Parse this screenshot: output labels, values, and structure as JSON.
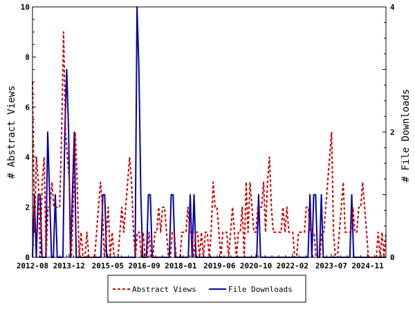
{
  "chart_data": {
    "type": "line",
    "x_start": "2012-08",
    "x_end": "2025-07",
    "x_ticks": [
      "2012-08",
      "2013-12",
      "2015-05",
      "2016-09",
      "2018-01",
      "2019-06",
      "2020-10",
      "2022-02",
      "2023-07",
      "2024-11"
    ],
    "ylabel": "# Abstract Views",
    "ylim": [
      0,
      10
    ],
    "yticks": [
      0,
      2,
      4,
      6,
      8,
      10
    ],
    "y2label": "# File Downloads",
    "y2lim": [
      0,
      4
    ],
    "y2ticks": [
      0,
      2,
      4
    ],
    "grid": false,
    "legend_position": "bottom-center",
    "series": [
      {
        "name": "Abstract Views",
        "axis": "left",
        "color": "#cc0000",
        "style": "dashed",
        "values": [
          7,
          1,
          4,
          3,
          0,
          3,
          4,
          0,
          2,
          2,
          3,
          2,
          2,
          2,
          2,
          5,
          9,
          5,
          4,
          3,
          0,
          2,
          5,
          3,
          0,
          1,
          0,
          0,
          1,
          0,
          0,
          0,
          0,
          1,
          2,
          3,
          2,
          0,
          1,
          2,
          0,
          1,
          0,
          0,
          0,
          1,
          2,
          1,
          2,
          3,
          4,
          3,
          1,
          0,
          1,
          1,
          0,
          1,
          0,
          0,
          1,
          0,
          0,
          1,
          1,
          2,
          1,
          2,
          2,
          1,
          0,
          0,
          1,
          1,
          0,
          0,
          0,
          1,
          1,
          1,
          2,
          1,
          1,
          0,
          1,
          1,
          0,
          1,
          0,
          1,
          1,
          0,
          1,
          3,
          2,
          2,
          1,
          0,
          1,
          1,
          1,
          0,
          1,
          2,
          1,
          0,
          1,
          1,
          2,
          0,
          3,
          1,
          3,
          2,
          1,
          1,
          2,
          2,
          2,
          3,
          1,
          3,
          4,
          2,
          1,
          1,
          1,
          1,
          1,
          2,
          1,
          2,
          1,
          1,
          1,
          0,
          0,
          1,
          1,
          1,
          1,
          2,
          2,
          1,
          1,
          1,
          0,
          0,
          0,
          1,
          1,
          2,
          3,
          4,
          5,
          1,
          0,
          0,
          1,
          2,
          3,
          1,
          1,
          1,
          1,
          2,
          1,
          1,
          2,
          2,
          3,
          2,
          1,
          0,
          0,
          0,
          0,
          0,
          1,
          0,
          1,
          0,
          1
        ]
      },
      {
        "name": "File Downloads",
        "axis": "right",
        "color": "#0000aa",
        "style": "solid",
        "values": [
          0,
          1,
          0,
          1,
          1,
          0,
          0,
          0,
          2,
          1,
          0,
          0,
          1,
          0,
          0,
          0,
          0,
          2,
          3,
          2,
          0,
          1,
          2,
          0,
          0,
          0,
          0,
          0,
          0,
          0,
          0,
          0,
          0,
          0,
          0,
          0,
          0,
          1,
          1,
          0,
          0,
          0,
          0,
          0,
          0,
          0,
          0,
          0,
          0,
          0,
          0,
          0,
          0,
          0,
          0,
          4,
          3,
          1,
          0,
          0,
          0,
          1,
          1,
          0,
          0,
          0,
          0,
          0,
          0,
          0,
          0,
          0,
          0,
          1,
          1,
          0,
          0,
          0,
          0,
          0,
          0,
          0,
          0,
          1,
          0,
          1,
          0,
          0,
          0,
          0,
          0,
          0,
          0,
          0,
          0,
          0,
          0,
          0,
          0,
          0,
          0,
          0,
          0,
          0,
          0,
          0,
          0,
          0,
          0,
          0,
          0,
          0,
          0,
          0,
          0,
          0,
          0,
          0,
          0,
          1,
          0,
          0,
          0,
          0,
          0,
          0,
          0,
          0,
          0,
          0,
          0,
          0,
          0,
          0,
          0,
          0,
          0,
          0,
          0,
          0,
          0,
          0,
          0,
          0,
          0,
          0,
          1,
          0,
          1,
          1,
          0,
          0,
          1,
          0,
          0,
          0,
          0,
          0,
          0,
          0,
          0,
          0,
          0,
          0,
          0,
          0,
          0,
          0,
          1,
          0,
          0,
          0,
          0,
          0,
          0,
          0,
          0,
          0,
          0,
          0,
          0,
          0,
          0,
          0,
          0,
          0,
          0
        ]
      }
    ]
  }
}
